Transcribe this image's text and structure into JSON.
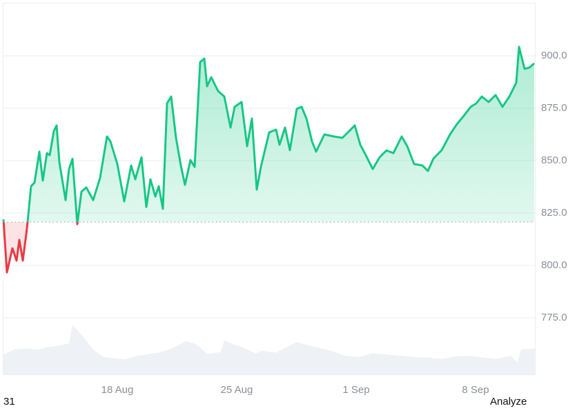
{
  "chart_data": {
    "type": "area",
    "title": "",
    "xlabel": "",
    "ylabel": "",
    "ylim": [
      760,
      920
    ],
    "grid": true,
    "y_ticks": [
      "900.0",
      "875.0",
      "850.0",
      "825.0",
      "800.0",
      "775.0"
    ],
    "x_ticks": [
      "18 Aug",
      "25 Aug",
      "1 Sep",
      "8 Sep"
    ],
    "baseline": 820.7,
    "colors": {
      "up": "#16c784",
      "down": "#ea3943",
      "volume": "#eef1f5",
      "grid": "#eceef2",
      "axis_text": "#8a8f98"
    },
    "series": [
      {
        "name": "price",
        "x": [
          5,
          10,
          18,
          24,
          28,
          33,
          38,
          40,
          45,
          50,
          57,
          62,
          68,
          72,
          78,
          82,
          86,
          95,
          100,
          105,
          112,
          118,
          125,
          135,
          145,
          155,
          160,
          170,
          180,
          190,
          196,
          205,
          212,
          218,
          225,
          230,
          236,
          242,
          248,
          255,
          262,
          268,
          276,
          282,
          290,
          296,
          300,
          306,
          316,
          325,
          334,
          340,
          350,
          358,
          365,
          372,
          378,
          390,
          400,
          405,
          413,
          420,
          430,
          437,
          444,
          452,
          458,
          470,
          484,
          496,
          506,
          514,
          522,
          530,
          540,
          550,
          560,
          570,
          582,
          590,
          600,
          612,
          620,
          628,
          640,
          652,
          662,
          672,
          682,
          690,
          698,
          708,
          718,
          728,
          738,
          748,
          752,
          760,
          767,
          774
        ],
        "values": [
          822.0,
          796.7,
          808.2,
          802.3,
          812.2,
          802.3,
          814.8,
          820.7,
          837.8,
          839.5,
          854.3,
          840.5,
          853.6,
          852.6,
          864.1,
          866.8,
          849.3,
          831.2,
          846.0,
          850.9,
          819.7,
          835.2,
          837.2,
          831.2,
          841.8,
          861.5,
          859.2,
          848.4,
          830.6,
          847.7,
          841.1,
          851.6,
          827.9,
          841.1,
          832.9,
          837.8,
          827.0,
          877.3,
          880.6,
          860.9,
          847.7,
          838.5,
          850.3,
          847.0,
          897.0,
          898.7,
          885.5,
          889.8,
          883.2,
          880.6,
          865.8,
          875.7,
          878.0,
          856.9,
          870.1,
          836.2,
          847.0,
          863.5,
          864.8,
          857.6,
          865.8,
          855.0,
          874.7,
          875.7,
          870.1,
          859.2,
          854.3,
          862.5,
          861.5,
          860.9,
          864.1,
          866.8,
          857.6,
          852.6,
          846.0,
          851.6,
          854.9,
          853.6,
          861.5,
          856.9,
          848.4,
          847.7,
          845.1,
          851.0,
          855.0,
          862.5,
          867.4,
          871.4,
          875.7,
          877.3,
          880.6,
          878.0,
          881.3,
          875.7,
          880.6,
          887.2,
          904.3,
          893.8,
          894.4,
          896.4
        ]
      },
      {
        "name": "volume",
        "x": [
          5,
          20,
          40,
          55,
          70,
          85,
          100,
          105,
          125,
          135,
          150,
          180,
          200,
          230,
          250,
          270,
          285,
          300,
          320,
          325,
          335,
          355,
          370,
          380,
          400,
          415,
          430,
          450,
          480,
          500,
          520,
          540,
          560,
          580,
          600,
          620,
          640,
          660,
          680,
          700,
          720,
          740,
          750,
          755,
          775
        ],
        "values": [
          0.32,
          0.4,
          0.42,
          0.4,
          0.44,
          0.46,
          0.5,
          0.8,
          0.55,
          0.4,
          0.28,
          0.24,
          0.3,
          0.35,
          0.42,
          0.54,
          0.48,
          0.33,
          0.36,
          0.55,
          0.5,
          0.42,
          0.34,
          0.38,
          0.35,
          0.44,
          0.52,
          0.46,
          0.38,
          0.3,
          0.28,
          0.34,
          0.32,
          0.3,
          0.28,
          0.27,
          0.25,
          0.29,
          0.3,
          0.27,
          0.25,
          0.3,
          0.2,
          0.4,
          0.42
        ]
      }
    ]
  },
  "labels": {
    "y_ticks": [
      "900.0",
      "875.0",
      "850.0",
      "825.0",
      "800.0",
      "775.0"
    ],
    "x_ticks": [
      "18 Aug",
      "25 Aug",
      "1 Sep",
      "8 Sep"
    ],
    "corner_left": "31",
    "corner_right": "Analyze"
  }
}
